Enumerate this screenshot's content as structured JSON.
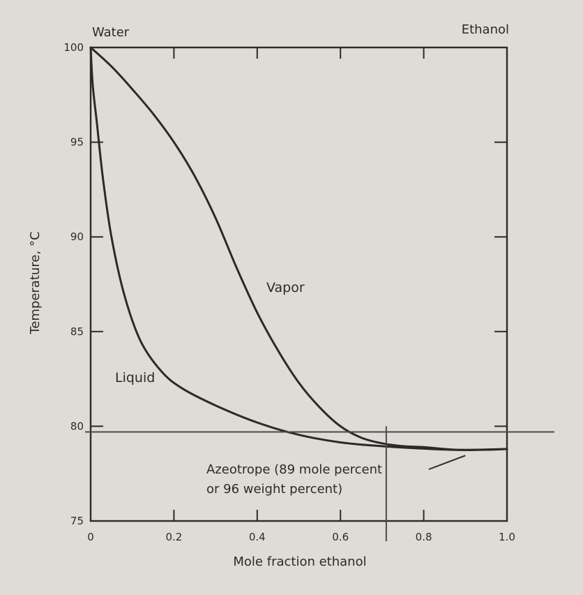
{
  "chart_data": {
    "type": "line",
    "corner_labels": {
      "left": "Water",
      "right": "Ethanol"
    },
    "xlabel": "Mole fraction ethanol",
    "ylabel": "Temperature, °C",
    "xlim": [
      0,
      1.0
    ],
    "ylim": [
      75,
      100
    ],
    "x_ticks": [
      {
        "value": 0,
        "label": "0"
      },
      {
        "value": 0.2,
        "label": "0.2"
      },
      {
        "value": 0.4,
        "label": "0.4"
      },
      {
        "value": 0.6,
        "label": "0.6"
      },
      {
        "value": 0.8,
        "label": "0.8"
      },
      {
        "value": 1.0,
        "label": "1.0"
      }
    ],
    "y_ticks": [
      {
        "value": 75,
        "label": "75"
      },
      {
        "value": 80,
        "label": "80"
      },
      {
        "value": 85,
        "label": "85"
      },
      {
        "value": 90,
        "label": "90"
      },
      {
        "value": 95,
        "label": "95"
      },
      {
        "value": 100,
        "label": "100"
      }
    ],
    "series": [
      {
        "name": "Vapor",
        "color": "#2b2a28",
        "points": [
          [
            0,
            100
          ],
          [
            0.05,
            99.0
          ],
          [
            0.1,
            97.8
          ],
          [
            0.15,
            96.5
          ],
          [
            0.2,
            95.0
          ],
          [
            0.25,
            93.2
          ],
          [
            0.3,
            91.0
          ],
          [
            0.35,
            88.4
          ],
          [
            0.4,
            86.0
          ],
          [
            0.45,
            84.0
          ],
          [
            0.5,
            82.3
          ],
          [
            0.55,
            81.0
          ],
          [
            0.6,
            80.0
          ],
          [
            0.65,
            79.4
          ],
          [
            0.7,
            79.1
          ],
          [
            0.75,
            78.95
          ],
          [
            0.8,
            78.9
          ],
          [
            0.85,
            78.8
          ],
          [
            0.89,
            78.75
          ],
          [
            0.95,
            78.76
          ],
          [
            1.0,
            78.8
          ]
        ]
      },
      {
        "name": "Liquid",
        "color": "#2b2a28",
        "points": [
          [
            0,
            100
          ],
          [
            0.005,
            98.0
          ],
          [
            0.015,
            96.0
          ],
          [
            0.03,
            93.0
          ],
          [
            0.05,
            90.0
          ],
          [
            0.08,
            87.0
          ],
          [
            0.12,
            84.5
          ],
          [
            0.17,
            82.9
          ],
          [
            0.22,
            82.0
          ],
          [
            0.3,
            81.1
          ],
          [
            0.4,
            80.2
          ],
          [
            0.5,
            79.55
          ],
          [
            0.6,
            79.15
          ],
          [
            0.7,
            78.95
          ],
          [
            0.8,
            78.82
          ],
          [
            0.89,
            78.75
          ],
          [
            1.0,
            78.8
          ]
        ]
      }
    ],
    "reference_lines": {
      "y": 79.7,
      "x": 0.71
    },
    "annotation": {
      "lines": [
        "Azeotrope (89 mole percent",
        "or 96 weight percent)"
      ],
      "x": 0.89,
      "y": 78.75
    }
  }
}
